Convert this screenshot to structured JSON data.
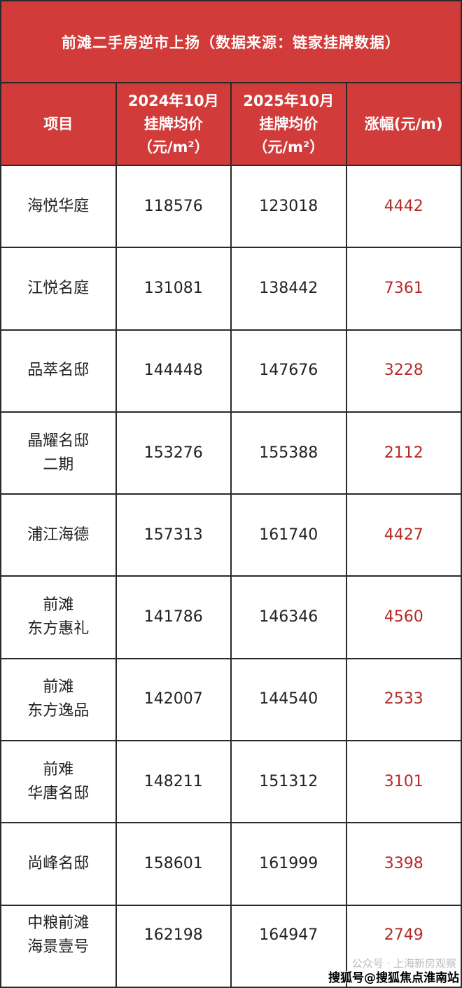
{
  "title": "前滩二手房逆市上扬（数据来源：链家挂牌数据）",
  "headers": {
    "project": "项目",
    "price2024": [
      "2024年10月",
      "挂牌均价",
      "（元/m²）"
    ],
    "price2025": [
      "2025年10月",
      "挂牌均价",
      "（元/m²）"
    ],
    "change": "涨幅(元/m)"
  },
  "rows": [
    {
      "name": [
        "海悦华庭"
      ],
      "p2024": "118576",
      "p2025": "123018",
      "change": "4442"
    },
    {
      "name": [
        "江悦名庭"
      ],
      "p2024": "131081",
      "p2025": "138442",
      "change": "7361"
    },
    {
      "name": [
        "品萃名邸"
      ],
      "p2024": "144448",
      "p2025": "147676",
      "change": "3228"
    },
    {
      "name": [
        "晶耀名邸",
        "二期"
      ],
      "p2024": "153276",
      "p2025": "155388",
      "change": "2112"
    },
    {
      "name": [
        "浦江海德"
      ],
      "p2024": "157313",
      "p2025": "161740",
      "change": "4427"
    },
    {
      "name": [
        "前滩",
        "东方惠礼"
      ],
      "p2024": "141786",
      "p2025": "146346",
      "change": "4560"
    },
    {
      "name": [
        "前滩",
        "东方逸品"
      ],
      "p2024": "142007",
      "p2025": "144540",
      "change": "2533"
    },
    {
      "name": [
        "前难",
        "华唐名邸"
      ],
      "p2024": "148211",
      "p2025": "151312",
      "change": "3101"
    },
    {
      "name": [
        "尚峰名邸"
      ],
      "p2024": "158601",
      "p2025": "161999",
      "change": "3398"
    },
    {
      "name": [
        "中粮前滩",
        "海景壹号"
      ],
      "p2024": "162198",
      "p2025": "164947",
      "change": "2749"
    }
  ],
  "watermarks": {
    "wechat": "公众号 · 上海新房观察",
    "sohu": "搜狐号@搜狐焦点淮南站"
  },
  "colors": {
    "header_bg": "#d13b39",
    "change_text": "#b52a26"
  }
}
